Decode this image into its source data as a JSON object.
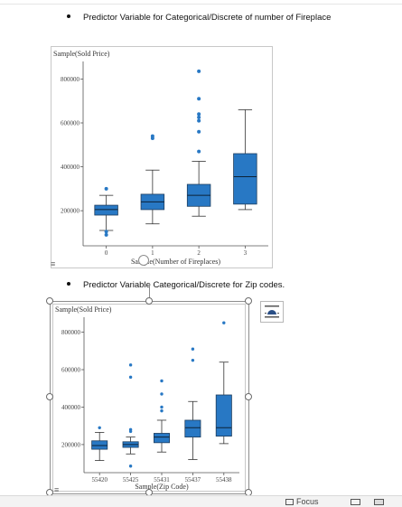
{
  "document": {
    "bullet_1": "Predictor Variable for Categorical/Discrete of number of Fireplace",
    "bullet_2": "Predictor Variable Categorical/Discrete for Zip codes."
  },
  "status_bar": {
    "focus_label": "Focus"
  },
  "chart_data": [
    {
      "type": "box",
      "title": "",
      "ylabel": "Sample(Sold Price)",
      "xlabel": "Sample(Number of Fireplaces)",
      "categories": [
        "0",
        "1",
        "2",
        "3"
      ],
      "yticks": [
        200000,
        400000,
        600000,
        800000
      ],
      "ytick_labels": [
        "200000",
        "400000",
        "600000",
        "800000"
      ],
      "ylim": [
        40000,
        880000
      ],
      "boxes": [
        {
          "category": "0",
          "whisker_low": 110000,
          "q1": 180000,
          "median": 205000,
          "q3": 225000,
          "whisker_high": 270000,
          "outliers": [
            300000,
            105000,
            90000
          ]
        },
        {
          "category": "1",
          "whisker_low": 140000,
          "q1": 205000,
          "median": 240000,
          "q3": 275000,
          "whisker_high": 385000,
          "outliers": [
            530000,
            540000
          ]
        },
        {
          "category": "2",
          "whisker_low": 175000,
          "q1": 220000,
          "median": 270000,
          "q3": 320000,
          "whisker_high": 425000,
          "outliers": [
            470000,
            560000,
            610000,
            625000,
            640000,
            710000,
            835000
          ]
        },
        {
          "category": "3",
          "whisker_low": 205000,
          "q1": 230000,
          "median": 355000,
          "q3": 460000,
          "whisker_high": 660000,
          "outliers": []
        }
      ],
      "box_color": "#2878c4",
      "grid": false
    },
    {
      "type": "box",
      "title": "",
      "ylabel": "Sample(Sold Price)",
      "xlabel": "Sample(Zip Code)",
      "categories": [
        "55420",
        "55425",
        "55431",
        "55437",
        "55438"
      ],
      "yticks": [
        200000,
        400000,
        600000,
        800000
      ],
      "ytick_labels": [
        "200000",
        "400000",
        "600000",
        "800000"
      ],
      "ylim": [
        50000,
        880000
      ],
      "boxes": [
        {
          "category": "55420",
          "whisker_low": 115000,
          "q1": 175000,
          "median": 195000,
          "q3": 220000,
          "whisker_high": 265000,
          "outliers": [
            290000
          ]
        },
        {
          "category": "55425",
          "whisker_low": 150000,
          "q1": 185000,
          "median": 200000,
          "q3": 215000,
          "whisker_high": 240000,
          "outliers": [
            270000,
            280000,
            560000,
            625000,
            85000
          ]
        },
        {
          "category": "55431",
          "whisker_low": 160000,
          "q1": 210000,
          "median": 240000,
          "q3": 260000,
          "whisker_high": 330000,
          "outliers": [
            380000,
            400000,
            470000,
            540000
          ]
        },
        {
          "category": "55437",
          "whisker_low": 120000,
          "q1": 240000,
          "median": 290000,
          "q3": 330000,
          "whisker_high": 430000,
          "outliers": [
            650000,
            710000
          ]
        },
        {
          "category": "55438",
          "whisker_low": 205000,
          "q1": 245000,
          "median": 290000,
          "q3": 465000,
          "whisker_high": 640000,
          "outliers": [
            850000
          ]
        }
      ],
      "box_color": "#2878c4",
      "grid": false
    }
  ]
}
